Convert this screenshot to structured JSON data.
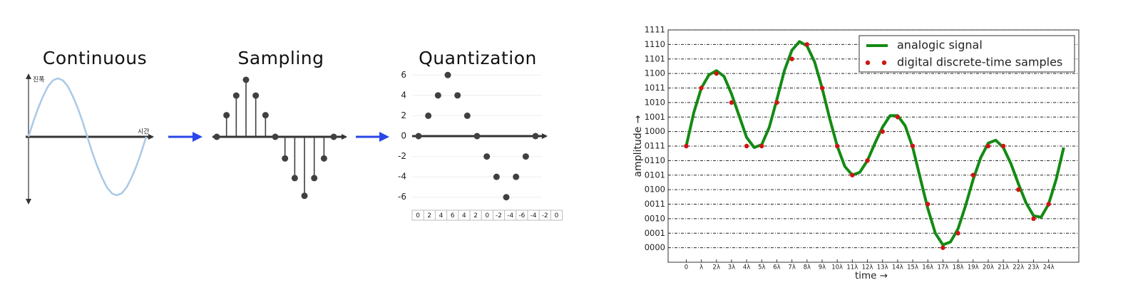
{
  "chart_data": [
    {
      "type": "line",
      "title": "Continuous",
      "ylabel": "진폭",
      "xlabel": "시간",
      "color": "#a9c9e6",
      "x": [
        0,
        1,
        2,
        3,
        4,
        5,
        6,
        7,
        8,
        9,
        10,
        11,
        12,
        13,
        14,
        15,
        16,
        17,
        18,
        19,
        20,
        21,
        22,
        23,
        24
      ],
      "values": [
        0,
        1.6,
        3,
        4.2,
        5.2,
        5.8,
        6,
        5.8,
        5.2,
        4.2,
        3,
        1.6,
        0,
        -1.6,
        -3,
        -4.2,
        -5.2,
        -5.8,
        -6,
        -5.8,
        -5.2,
        -4.2,
        -3,
        -1.6,
        0
      ]
    },
    {
      "type": "stem",
      "title": "Sampling",
      "color": "#404040",
      "values": [
        0,
        2.2,
        4.2,
        5.8,
        4.2,
        2.2,
        0,
        -2.2,
        -4.2,
        -6,
        -4.2,
        -2.2,
        0
      ]
    },
    {
      "type": "scatter",
      "title": "Quantization",
      "color": "#404040",
      "values": [
        0,
        2,
        4,
        6,
        4,
        2,
        0,
        -2,
        -4,
        -6,
        -4,
        -2,
        0
      ],
      "ylim": [
        -7,
        7
      ],
      "yticks": [
        -6,
        -4,
        -2,
        0,
        2,
        4,
        6
      ],
      "grid": true
    },
    {
      "type": "line",
      "xlabel": "time →",
      "ylabel": "amplitude →",
      "grid": true,
      "legend": "upper right",
      "xlim": [
        -1.2,
        26
      ],
      "ylim": [
        -1,
        15
      ],
      "xticks": [
        0,
        {
          "value": 1,
          "label": "λ"
        },
        {
          "value": 2,
          "label": "2λ"
        },
        {
          "value": 3,
          "label": "3λ"
        },
        {
          "value": 4,
          "label": "4λ"
        },
        {
          "value": 5,
          "label": "5λ"
        },
        {
          "value": 6,
          "label": "6λ"
        },
        {
          "value": 7,
          "label": "7λ"
        },
        {
          "value": 8,
          "label": "8λ"
        },
        {
          "value": 9,
          "label": "9λ"
        },
        {
          "value": 10,
          "label": "10λ"
        },
        {
          "value": 11,
          "label": "11λ"
        },
        {
          "value": 12,
          "label": "12λ"
        },
        {
          "value": 13,
          "label": "13λ"
        },
        {
          "value": 14,
          "label": "14λ"
        },
        {
          "value": 15,
          "label": "15λ"
        },
        {
          "value": 16,
          "label": "16λ"
        },
        {
          "value": 17,
          "label": "17λ"
        },
        {
          "value": 18,
          "label": "18λ"
        },
        {
          "value": 19,
          "label": "19λ"
        },
        {
          "value": 20,
          "label": "20λ"
        },
        {
          "value": 21,
          "label": "21λ"
        },
        {
          "value": 22,
          "label": "22λ"
        },
        {
          "value": 23,
          "label": "23λ"
        },
        {
          "value": 24,
          "label": "24λ"
        }
      ],
      "yticks": [
        {
          "value": 0,
          "label": "0000"
        },
        {
          "value": 1,
          "label": "0001"
        },
        {
          "value": 2,
          "label": "0010"
        },
        {
          "value": 3,
          "label": "0011"
        },
        {
          "value": 4,
          "label": "0100"
        },
        {
          "value": 5,
          "label": "0101"
        },
        {
          "value": 6,
          "label": "0110"
        },
        {
          "value": 7,
          "label": "0111"
        },
        {
          "value": 8,
          "label": "1000"
        },
        {
          "value": 9,
          "label": "1001"
        },
        {
          "value": 10,
          "label": "1010"
        },
        {
          "value": 11,
          "label": "1011"
        },
        {
          "value": 12,
          "label": "1100"
        },
        {
          "value": 13,
          "label": "1101"
        },
        {
          "value": 14,
          "label": "1110"
        },
        {
          "value": 15,
          "label": "1111"
        }
      ],
      "series": [
        {
          "name": "analogic signal",
          "type": "line",
          "color": "#138a13",
          "x": [
            0,
            0.5,
            1,
            1.5,
            2,
            2.5,
            3,
            3.5,
            4,
            4.5,
            5,
            5.5,
            6,
            6.5,
            7,
            7.5,
            8,
            8.5,
            9,
            9.5,
            10,
            10.5,
            11,
            11.5,
            12,
            12.5,
            13,
            13.5,
            14,
            14.5,
            15,
            15.5,
            16,
            16.5,
            17,
            17.5,
            18,
            18.5,
            19,
            19.5,
            20,
            20.5,
            21,
            21.5,
            22,
            22.5,
            23,
            23.5,
            24,
            24.5,
            25
          ],
          "values": [
            7,
            9.3,
            11,
            11.9,
            12.2,
            11.8,
            10.6,
            9.1,
            7.6,
            6.9,
            7.1,
            8.3,
            10.2,
            12.2,
            13.6,
            14.2,
            13.9,
            12.8,
            11,
            8.9,
            7,
            5.6,
            5,
            5.2,
            6,
            7.2,
            8.3,
            9.1,
            9.1,
            8.4,
            6.9,
            4.8,
            2.7,
            1,
            0.2,
            0.4,
            1.3,
            2.9,
            4.7,
            6.2,
            7.2,
            7.4,
            6.9,
            5.8,
            4.4,
            3.1,
            2.2,
            2.1,
            3,
            4.7,
            6.9
          ]
        },
        {
          "name": "digital discrete-time samples",
          "type": "scatter",
          "color": "#d01414",
          "x": [
            0,
            1,
            2,
            3,
            4,
            5,
            6,
            7,
            8,
            9,
            10,
            11,
            12,
            13,
            14,
            15,
            16,
            17,
            18,
            19,
            20,
            21,
            22,
            23,
            24
          ],
          "values": [
            7,
            11,
            12,
            10,
            7,
            7,
            10,
            13,
            14,
            11,
            7,
            5,
            6,
            8,
            9,
            7,
            3,
            0,
            1,
            5,
            7,
            7,
            4,
            2,
            3
          ]
        }
      ]
    }
  ]
}
